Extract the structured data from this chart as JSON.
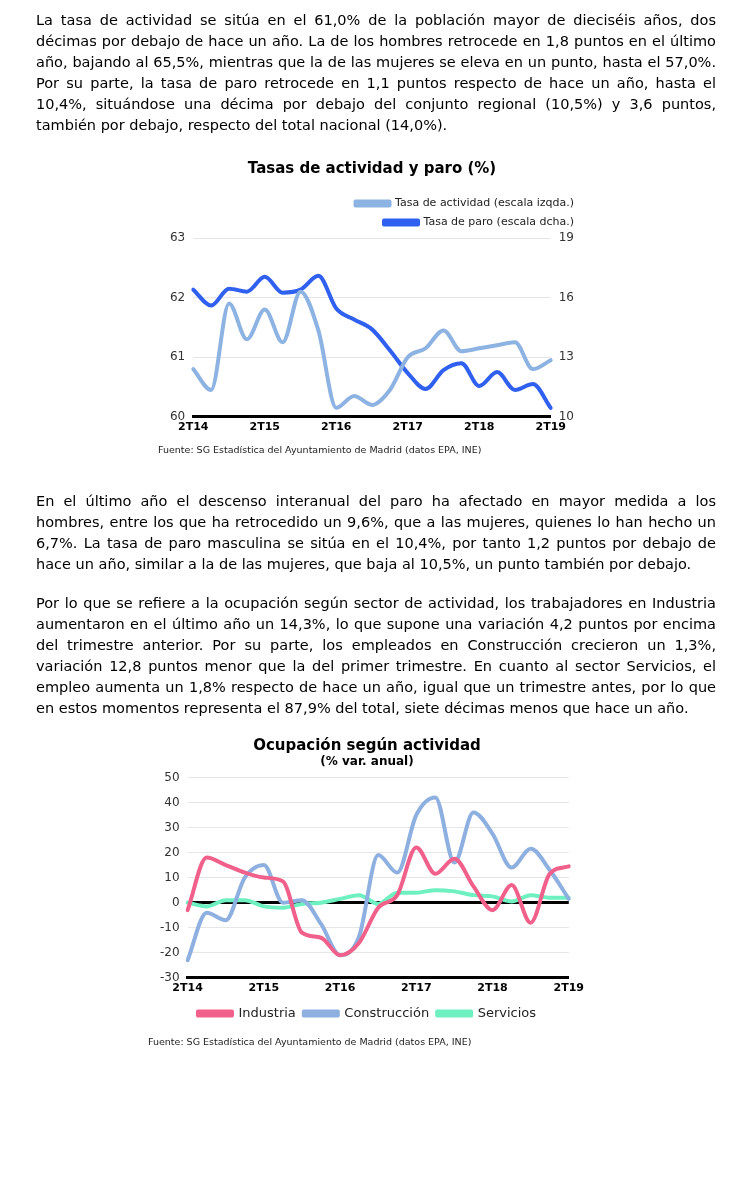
{
  "chart_data": [
    {
      "type": "line",
      "title": "Tasas de actividad y paro (%)",
      "annotations": [
        "La tasa de actividad se sitúa en el 61,0% de la población mayor de dieciséis años, dos décimas por debajo de hace un año. La de los hombres retrocede en 1,8 puntos en el último año, bajando al 65,5%, mientras que la de las mujeres se eleva en un punto, hasta el 57,0%. Por su parte, la tasa de paro retrocede en 1,1 puntos respecto de hace un año, hasta el 10,4%, situándose una décima por debajo del conjunto regional (10,5%) y 3,6 puntos, también por debajo, respecto del total nacional (14,0%).",
        "Fuente: SG Estadística del Ayuntamiento de Madrid (datos EPA, INE)"
      ],
      "categories": [
        "2T14",
        null,
        null,
        null,
        "2T15",
        null,
        null,
        null,
        "2T16",
        null,
        null,
        null,
        "2T17",
        null,
        null,
        null,
        "2T18",
        null,
        null,
        null,
        "2T19"
      ],
      "series": [
        {
          "name": "Tasa de actividad (escala izqda.)",
          "color": "#8db3e2",
          "values": [
            60.8,
            60.45,
            61.9,
            61.3,
            61.8,
            61.25,
            62.1,
            61.45,
            60.15,
            60.35,
            60.2,
            60.45,
            61.0,
            61.15,
            61.45,
            61.1,
            61.15,
            61.2,
            61.25,
            60.8,
            60.95
          ]
        },
        {
          "name": "Tasa de paro (escala dcha.)",
          "color": "#3060f0",
          "axis": "y2",
          "values": [
            16.4,
            15.6,
            16.45,
            16.3,
            17.05,
            16.25,
            16.4,
            17.1,
            15.45,
            14.9,
            14.4,
            13.35,
            12.2,
            11.4,
            12.35,
            12.7,
            11.55,
            12.25,
            11.35,
            11.65,
            10.45
          ]
        }
      ],
      "ylim": [
        60,
        63
      ],
      "yticks": [
        60,
        61,
        62,
        63
      ],
      "y2lim": [
        10,
        19
      ],
      "y2ticks": [
        10,
        13,
        16,
        19
      ],
      "grid": "y",
      "legend": "top right",
      "marker": "none",
      "line_style": "solid"
    },
    {
      "type": "line",
      "title": "Ocupación según actividad",
      "subtitle": "(% var. anual)",
      "annotations": [
        "En el último año el descenso interanual del paro ha afectado en mayor medida a los hombres, entre los que ha retrocedido un 9,6%, que a las mujeres, quienes lo han hecho un 6,7%. La tasa de paro masculina se sitúa en el 10,4%, por tanto 1,2 puntos por debajo de hace un año, similar a la de las mujeres, que baja al 10,5%, un punto también por debajo.",
        "Por lo que se refiere a la ocupación según sector de actividad, los trabajadores en Industria aumentaron en el último año un 14,3%, lo que supone una variación 4,2 puntos por encima del trimestre anterior. Por su parte, los empleados en Construcción crecieron un 1,3%, variación 12,8 puntos menor que la del primer trimestre. En cuanto al sector Servicios, el empleo aumenta un 1,8% respecto de hace un año, igual que un trimestre antes, por lo que en estos momentos representa el 87,9% del total, siete décimas menos que hace un año.",
        "Fuente: SG Estadística del Ayuntamiento de Madrid (datos EPA, INE)"
      ],
      "categories": [
        "2T14",
        null,
        null,
        null,
        "2T15",
        null,
        null,
        null,
        "2T16",
        null,
        null,
        null,
        "2T17",
        null,
        null,
        null,
        "2T18",
        null,
        null,
        null,
        "2T19"
      ],
      "series": [
        {
          "name": "Industria",
          "color": "#f0608a",
          "values": [
            -3,
            18,
            15,
            12,
            10,
            8.5,
            -12,
            -14,
            -21,
            -16,
            -2,
            3,
            22,
            11.5,
            17.5,
            6.5,
            -3,
            7,
            -8,
            11.5,
            14.5
          ]
        },
        {
          "name": "Construcción",
          "color": "#8eb0e0",
          "values": [
            -23,
            -4,
            -7,
            10,
            15,
            0,
            1,
            -8.5,
            -21,
            -13.5,
            19,
            12,
            35,
            42,
            16,
            36,
            27.5,
            14,
            21.5,
            13,
            1.5
          ]
        },
        {
          "name": "Servicios",
          "color": "#6ef0c0",
          "values": [
            0,
            -1.5,
            1,
            1,
            -1.5,
            -2,
            -0.5,
            0,
            1.5,
            3,
            -0.5,
            4,
            4,
            5,
            4.5,
            3,
            2.5,
            0.5,
            3,
            2,
            2
          ]
        }
      ],
      "ylim": [
        -30,
        50
      ],
      "yticks": [
        -30,
        -20,
        -10,
        0,
        10,
        20,
        30,
        40,
        50
      ],
      "grid": "y",
      "legend": "bottom",
      "marker": "none",
      "line_style": "solid"
    }
  ]
}
